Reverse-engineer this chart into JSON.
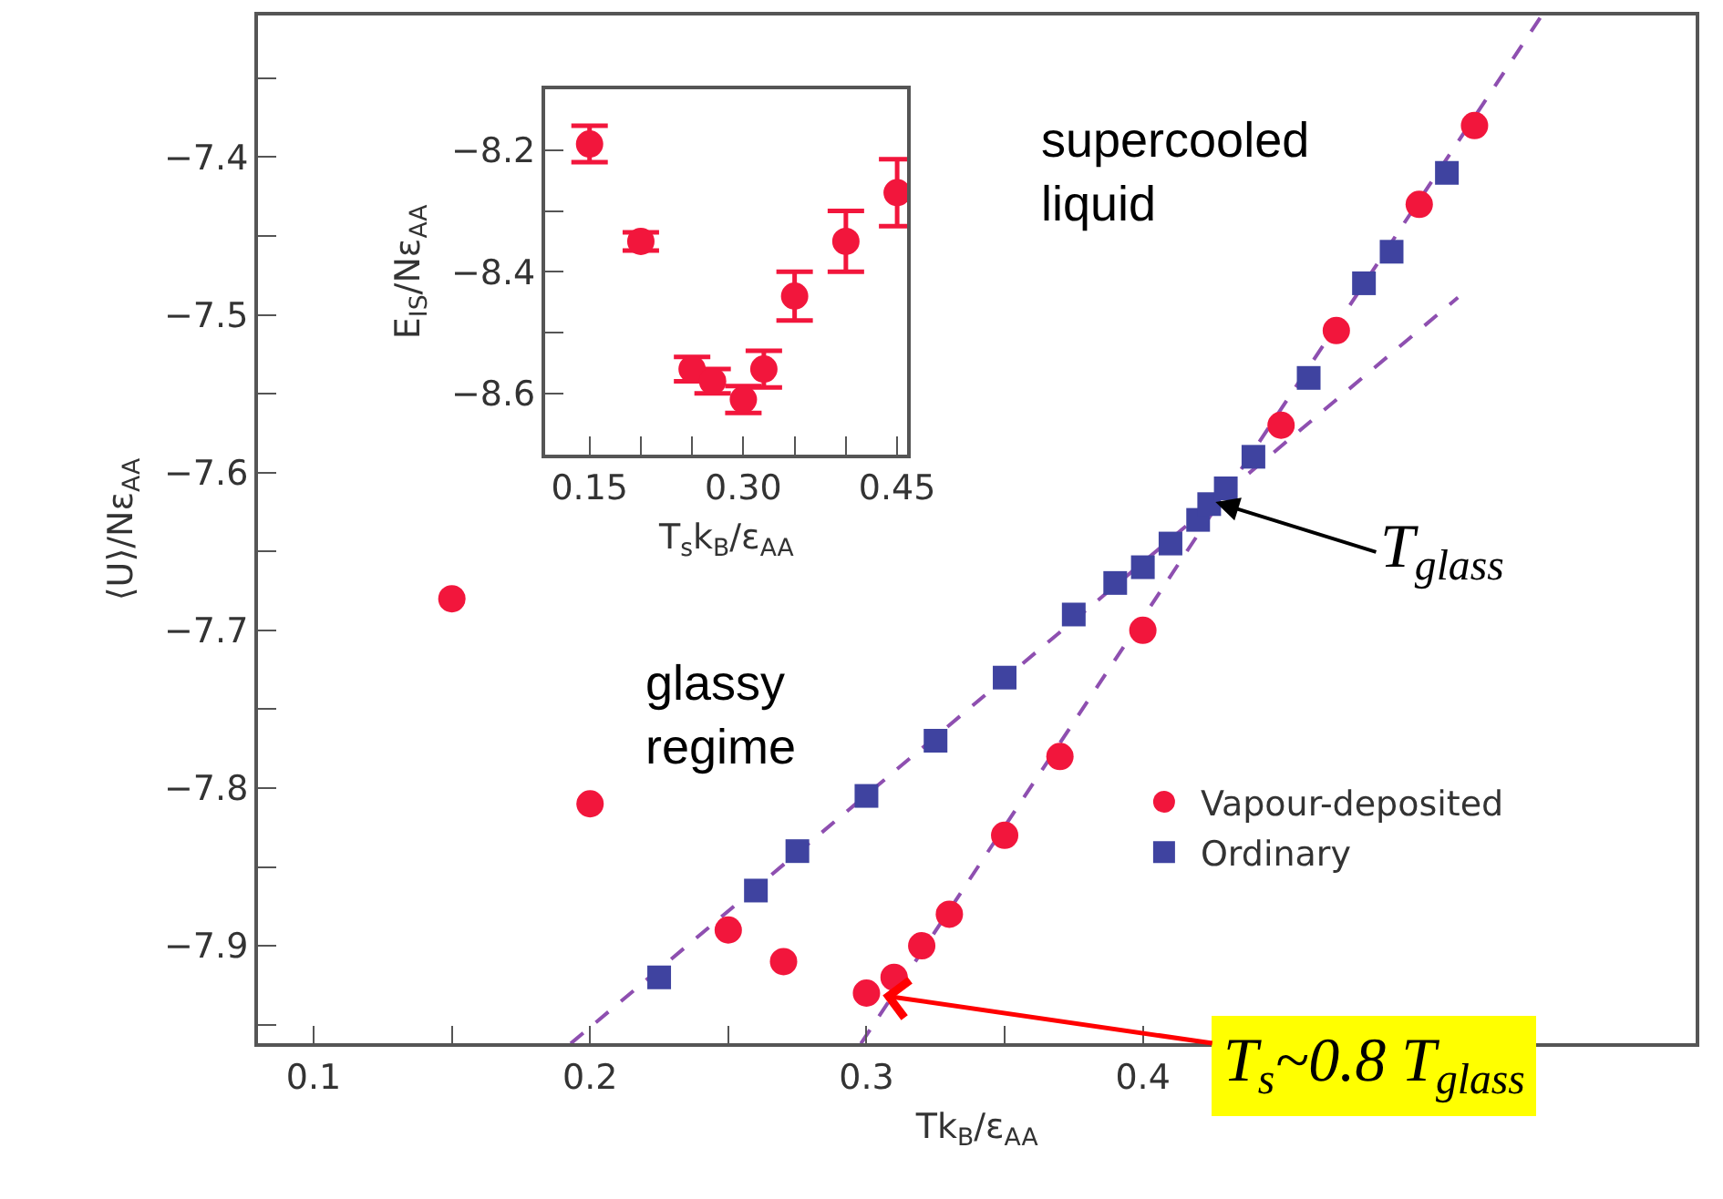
{
  "chart_data": [
    {
      "type": "scatter",
      "xlabel": "Tk$_{B}$/ε$_{AA}$",
      "ylabel": "⟨U⟩/Nε$_{AA}$",
      "xlim": [
        0.08,
        0.6
      ],
      "ylim": [
        -7.962,
        -7.31
      ],
      "xticks": [
        0.1,
        {
          "value": 0.15,
          "label": null
        },
        0.2,
        {
          "value": 0.25,
          "label": null
        },
        0.3,
        {
          "value": 0.35,
          "label": null
        },
        0.4
      ],
      "yticks": [
        {
          "value": -7.95,
          "label": null
        },
        {
          "value": -7.9,
          "label": "−7.9"
        },
        {
          "value": -7.85,
          "label": null
        },
        {
          "value": -7.8,
          "label": "−7.8"
        },
        {
          "value": -7.75,
          "label": null
        },
        {
          "value": -7.7,
          "label": "−7.7"
        },
        {
          "value": -7.65,
          "label": null
        },
        {
          "value": -7.6,
          "label": "−7.6"
        },
        {
          "value": -7.55,
          "label": null
        },
        {
          "value": -7.5,
          "label": "−7.5"
        },
        {
          "value": -7.45,
          "label": null
        },
        {
          "value": -7.4,
          "label": "−7.4"
        },
        {
          "value": -7.35,
          "label": null
        }
      ],
      "legend": "bottom right",
      "series": [
        {
          "type": "line",
          "x": [
            0.298,
            0.544
          ],
          "values": [
            -7.962,
            -7.311
          ],
          "color": "#8e4fb0",
          "line_style": "dashed",
          "marker": "none"
        },
        {
          "type": "line",
          "x": [
            0.193,
            0.514
          ],
          "values": [
            -7.962,
            -7.489
          ],
          "color": "#8e4fb0",
          "line_style": "dashed",
          "marker": "none"
        },
        {
          "name": "Vapour-deposited",
          "color": "#f2163c",
          "marker": "circle",
          "x": [
            0.15,
            0.2,
            0.25,
            0.27,
            0.3,
            0.31,
            0.32,
            0.33,
            0.35,
            0.37,
            0.4,
            0.45,
            0.47,
            0.5,
            0.52
          ],
          "values": [
            -7.68,
            -7.81,
            -7.89,
            -7.91,
            -7.93,
            -7.92,
            -7.9,
            -7.88,
            -7.83,
            -7.78,
            -7.7,
            -7.57,
            -7.51,
            -7.43,
            -7.38
          ]
        },
        {
          "name": "Ordinary",
          "color": "#3f43a0",
          "marker": "square",
          "x": [
            0.225,
            0.26,
            0.275,
            0.3,
            0.325,
            0.35,
            0.375,
            0.39,
            0.4,
            0.41,
            0.42,
            0.424,
            0.43,
            0.44,
            0.46,
            0.48,
            0.49,
            0.51
          ],
          "values": [
            -7.92,
            -7.865,
            -7.84,
            -7.805,
            -7.77,
            -7.73,
            -7.69,
            -7.67,
            -7.66,
            -7.645,
            -7.63,
            -7.62,
            -7.61,
            -7.59,
            -7.54,
            -7.48,
            -7.46,
            -7.41
          ]
        }
      ],
      "annotations": [
        "supercooled\nliquid",
        "glassy\nregime",
        {
          "text": "T$_{glass}$",
          "x": 0.425,
          "y": -7.618
        },
        {
          "text": "T$_{s}$~0.8 T$_{glass}$",
          "x": 0.3,
          "y": -7.93
        }
      ]
    },
    {
      "type": "scatter",
      "xlabel": "T$_{s}$k$_{B}$/ε$_{AA}$",
      "ylabel": "E$_{IS}$/Nε$_{AA}$",
      "xlim": [
        0.107,
        0.46
      ],
      "ylim": [
        -8.7,
        -8.1
      ],
      "xticks": [
        {
          "value": 0.15,
          "label": "0.15"
        },
        {
          "value": 0.2,
          "label": null
        },
        {
          "value": 0.25,
          "label": null
        },
        {
          "value": 0.3,
          "label": "0.30"
        },
        {
          "value": 0.35,
          "label": null
        },
        {
          "value": 0.4,
          "label": null
        },
        {
          "value": 0.45,
          "label": "0.45"
        }
      ],
      "yticks": [
        {
          "value": -8.6,
          "label": "−8.6"
        },
        {
          "value": -8.5,
          "label": null
        },
        {
          "value": -8.4,
          "label": "−8.4"
        },
        {
          "value": -8.3,
          "label": null
        },
        {
          "value": -8.2,
          "label": "−8.2"
        }
      ],
      "marker": "circle",
      "x": [
        0.15,
        0.2,
        0.25,
        0.27,
        0.3,
        0.32,
        0.35,
        0.4,
        0.45
      ],
      "values": [
        -8.19,
        -8.35,
        -8.56,
        -8.58,
        -8.61,
        -8.56,
        -8.44,
        -8.35,
        -8.27
      ],
      "errors": [
        0.03,
        0.015,
        0.02,
        0.02,
        0.022,
        0.03,
        0.04,
        0.05,
        0.055
      ],
      "color": "#f2163c"
    }
  ]
}
